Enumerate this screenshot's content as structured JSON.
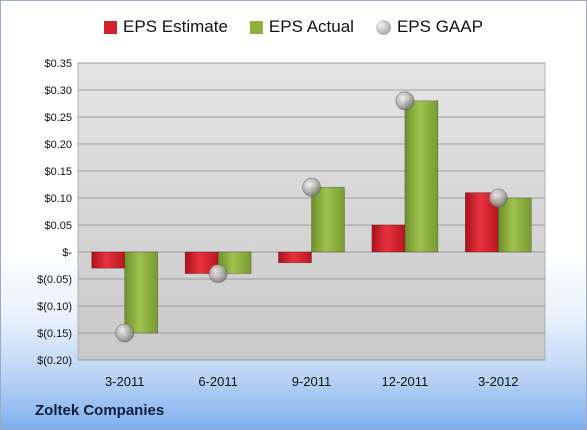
{
  "company_label": "Zoltek Companies",
  "legend": [
    {
      "label": "EPS Estimate",
      "color": "#d3212d"
    },
    {
      "label": "EPS Actual",
      "color": "#8db03f"
    },
    {
      "label": "EPS GAAP",
      "color": "#b0b0b0"
    }
  ],
  "chart_data": {
    "type": "bar",
    "categories": [
      "3-2011",
      "6-2011",
      "9-2011",
      "12-2011",
      "3-2012"
    ],
    "series": [
      {
        "name": "EPS Estimate",
        "type": "bar",
        "color": "#d3212d",
        "values": [
          -0.03,
          -0.04,
          -0.02,
          0.05,
          0.11
        ]
      },
      {
        "name": "EPS Actual",
        "type": "bar",
        "color": "#8db03f",
        "values": [
          -0.15,
          -0.04,
          0.12,
          0.28,
          0.1
        ]
      },
      {
        "name": "EPS GAAP",
        "type": "scatter",
        "color": "#b0b0b0",
        "values": [
          -0.15,
          -0.04,
          0.12,
          0.28,
          0.1
        ]
      }
    ],
    "ylim": [
      -0.2,
      0.35
    ],
    "yticks": [
      0.35,
      0.3,
      0.25,
      0.2,
      0.15,
      0.1,
      0.05,
      0,
      -0.05,
      -0.1,
      -0.15,
      -0.2
    ],
    "ytick_labels": [
      "$0.35",
      "$0.30",
      "$0.25",
      "$0.20",
      "$0.15",
      "$0.10",
      "$0.05",
      "$-",
      "$(0.05)",
      "$(0.10)",
      "$(0.15)",
      "$(0.20)"
    ],
    "grid": true,
    "legend_position": "top"
  }
}
